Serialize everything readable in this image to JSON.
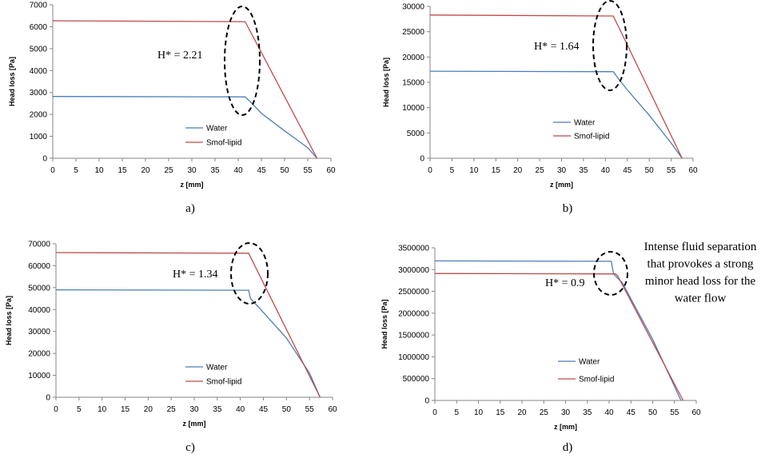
{
  "colors": {
    "water": "#4a7ebb",
    "smof": "#be4b48",
    "axis": "#868686"
  },
  "chart_data": [
    {
      "type": "line",
      "panel_label": "a)",
      "xlabel": "z [mm]",
      "ylabel": "Head loss [Pa]",
      "xlim": [
        0,
        60
      ],
      "xticks": [
        0,
        5,
        10,
        15,
        20,
        25,
        30,
        35,
        40,
        45,
        50,
        55,
        60
      ],
      "ylim": [
        0,
        7000
      ],
      "yticks": [
        0,
        1000,
        2000,
        3000,
        4000,
        5000,
        6000,
        7000
      ],
      "legend": "center-right",
      "series": [
        {
          "name": "Water",
          "x": [
            0,
            41.5,
            43,
            45,
            50,
            55,
            57
          ],
          "y": [
            2820,
            2800,
            2500,
            2050,
            1250,
            480,
            0
          ]
        },
        {
          "name": "Smof-lipid",
          "x": [
            0,
            41.5,
            57
          ],
          "y": [
            6270,
            6230,
            0
          ]
        }
      ],
      "annotations": [
        {
          "text": "H* = 2.21"
        }
      ]
    },
    {
      "type": "line",
      "panel_label": "b)",
      "xlabel": "z [mm]",
      "ylabel": "Head loss [Pa]",
      "xlim": [
        0,
        60
      ],
      "xticks": [
        0,
        5,
        10,
        15,
        20,
        25,
        30,
        35,
        40,
        45,
        50,
        55,
        60
      ],
      "ylim": [
        0,
        30000
      ],
      "yticks": [
        0,
        5000,
        10000,
        15000,
        20000,
        25000,
        30000
      ],
      "legend": "center-right",
      "series": [
        {
          "name": "Water",
          "x": [
            0,
            41.8,
            43,
            45,
            50,
            55,
            57.5
          ],
          "y": [
            17200,
            17100,
            15700,
            13500,
            8500,
            3000,
            0
          ]
        },
        {
          "name": "Smof-lipid",
          "x": [
            0,
            41.8,
            57.5
          ],
          "y": [
            28300,
            28100,
            0
          ]
        }
      ],
      "annotations": [
        {
          "text": "H* = 1.64"
        }
      ]
    },
    {
      "type": "line",
      "panel_label": "c)",
      "xlabel": "z [mm]",
      "ylabel": "Head loss [Pa]",
      "xlim": [
        0,
        60
      ],
      "xticks": [
        0,
        5,
        10,
        15,
        20,
        25,
        30,
        35,
        40,
        45,
        50,
        55,
        60
      ],
      "ylim": [
        0,
        70000
      ],
      "yticks": [
        0,
        10000,
        20000,
        30000,
        40000,
        50000,
        60000,
        70000
      ],
      "legend": "center-right",
      "series": [
        {
          "name": "Water",
          "x": [
            0,
            41.8,
            42.2,
            44,
            50,
            55,
            57.3
          ],
          "y": [
            49000,
            48800,
            45000,
            41000,
            27000,
            11000,
            0
          ]
        },
        {
          "name": "Smof-lipid",
          "x": [
            0,
            41.8,
            57.3
          ],
          "y": [
            66000,
            65700,
            0
          ]
        }
      ],
      "annotations": [
        {
          "text": "H* = 1.34"
        }
      ]
    },
    {
      "type": "line",
      "panel_label": "d)",
      "xlabel": "z [mm]",
      "ylabel": "Head loss [Pa]",
      "xlim": [
        0,
        60
      ],
      "xticks": [
        0,
        5,
        10,
        15,
        20,
        25,
        30,
        35,
        40,
        45,
        50,
        55,
        60
      ],
      "ylim": [
        0,
        3500000
      ],
      "yticks": [
        0,
        500000,
        1000000,
        1500000,
        2000000,
        2500000,
        3000000,
        3500000
      ],
      "legend": "center-right",
      "series": [
        {
          "name": "Water",
          "x": [
            0,
            40.5,
            41,
            43,
            50,
            56.5
          ],
          "y": [
            3200000,
            3190000,
            2900000,
            2700000,
            1400000,
            0
          ]
        },
        {
          "name": "Smof-lipid",
          "x": [
            0,
            41.5,
            42,
            57
          ],
          "y": [
            2910000,
            2900000,
            2850000,
            0
          ]
        }
      ],
      "annotations": [
        {
          "text": "H* = 0.9"
        },
        {
          "text_lines": [
            "Intense fluid separation",
            "that provokes a strong",
            "minor head loss for the",
            "water flow"
          ]
        }
      ]
    }
  ]
}
